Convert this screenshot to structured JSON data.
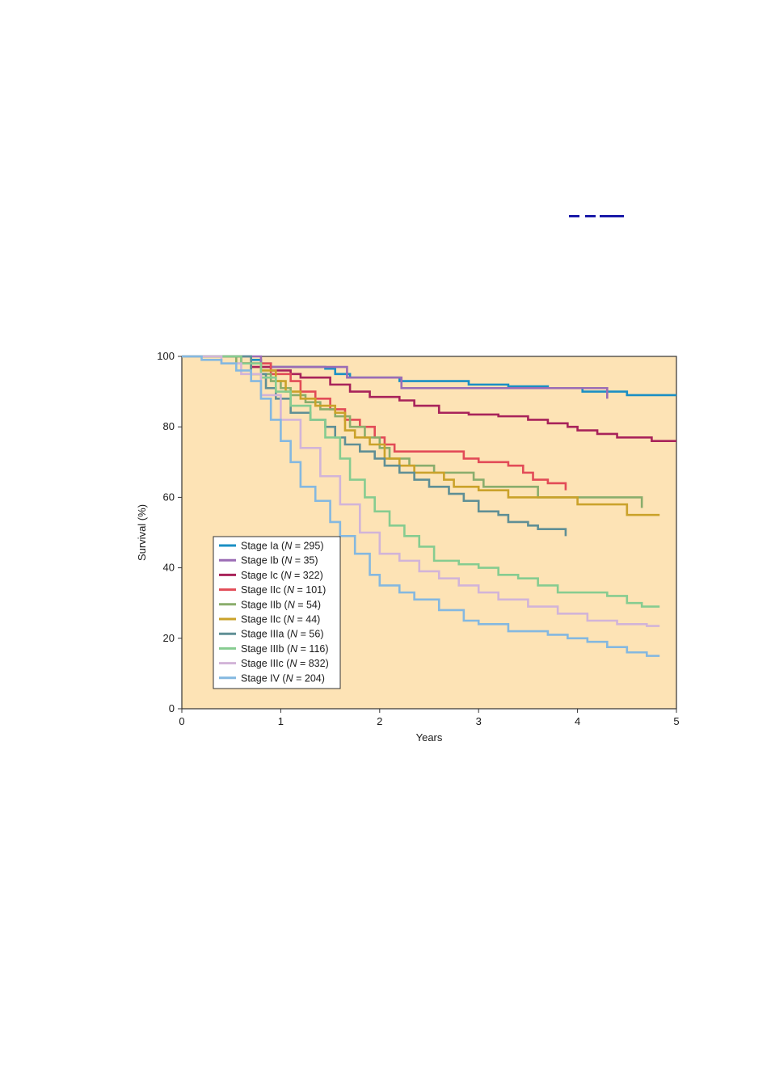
{
  "chart_data": {
    "type": "line",
    "title": "",
    "xlabel": "Years",
    "ylabel": "Survival (%)",
    "xlim": [
      0,
      5
    ],
    "ylim": [
      0,
      100
    ],
    "xticks": [
      "0",
      "1",
      "2",
      "3",
      "4",
      "5"
    ],
    "yticks": [
      "0",
      "20",
      "40",
      "60",
      "80",
      "100"
    ],
    "background_color": "#fde3b5",
    "grid": false,
    "legend_position": "lower-left",
    "series": [
      {
        "name": "Stage Ia",
        "n": "295",
        "color": "#1a8fc4",
        "points": [
          [
            0,
            100
          ],
          [
            0.6,
            100
          ],
          [
            0.7,
            99
          ],
          [
            0.8,
            98
          ],
          [
            0.9,
            97
          ],
          [
            1.45,
            96.5
          ],
          [
            1.55,
            95
          ],
          [
            1.7,
            94
          ],
          [
            2.2,
            93
          ],
          [
            2.85,
            93
          ],
          [
            2.9,
            92
          ],
          [
            3.2,
            92
          ],
          [
            3.3,
            91.5
          ],
          [
            3.7,
            91
          ],
          [
            4.05,
            90
          ],
          [
            4.5,
            90
          ],
          [
            4.5,
            89
          ],
          [
            5,
            89
          ]
        ]
      },
      {
        "name": "Stage Ib",
        "n": "35",
        "color": "#9b6cb5",
        "points": [
          [
            0,
            100
          ],
          [
            0.8,
            100
          ],
          [
            0.8,
            97
          ],
          [
            1.67,
            97
          ],
          [
            1.67,
            94
          ],
          [
            2.22,
            94
          ],
          [
            2.22,
            91
          ],
          [
            4.3,
            91
          ],
          [
            4.3,
            88
          ]
        ]
      },
      {
        "name": "Stage Ic",
        "n": "322",
        "color": "#a8235a",
        "points": [
          [
            0,
            100
          ],
          [
            0.6,
            100
          ],
          [
            0.6,
            98
          ],
          [
            0.7,
            97
          ],
          [
            0.9,
            96
          ],
          [
            1.1,
            95
          ],
          [
            1.2,
            94
          ],
          [
            1.5,
            92
          ],
          [
            1.7,
            90
          ],
          [
            1.9,
            88.5
          ],
          [
            2.2,
            87.5
          ],
          [
            2.35,
            86
          ],
          [
            2.6,
            84
          ],
          [
            2.9,
            83.5
          ],
          [
            3.2,
            83
          ],
          [
            3.5,
            82
          ],
          [
            3.7,
            81
          ],
          [
            3.9,
            80
          ],
          [
            4.0,
            79
          ],
          [
            4.2,
            78
          ],
          [
            4.4,
            77
          ],
          [
            4.75,
            76
          ],
          [
            5,
            76
          ]
        ]
      },
      {
        "name": "Stage IIc",
        "n": "101",
        "color": "#e24b57",
        "points": [
          [
            0,
            100
          ],
          [
            0.6,
            100
          ],
          [
            0.6,
            98
          ],
          [
            0.9,
            97
          ],
          [
            0.9,
            95
          ],
          [
            1.1,
            93
          ],
          [
            1.2,
            90
          ],
          [
            1.35,
            88
          ],
          [
            1.5,
            85
          ],
          [
            1.65,
            82
          ],
          [
            1.8,
            80
          ],
          [
            1.95,
            77
          ],
          [
            2.05,
            75
          ],
          [
            2.15,
            73
          ],
          [
            2.8,
            73
          ],
          [
            2.85,
            71
          ],
          [
            3.0,
            70
          ],
          [
            3.3,
            69
          ],
          [
            3.45,
            67
          ],
          [
            3.55,
            65
          ],
          [
            3.7,
            64
          ],
          [
            3.88,
            64
          ],
          [
            3.88,
            62
          ]
        ]
      },
      {
        "name": "Stage IIb",
        "n": "54",
        "color": "#8aad6c",
        "points": [
          [
            0,
            100
          ],
          [
            0.55,
            100
          ],
          [
            0.55,
            98
          ],
          [
            0.7,
            95
          ],
          [
            0.9,
            93
          ],
          [
            1.0,
            91
          ],
          [
            1.1,
            89
          ],
          [
            1.25,
            87
          ],
          [
            1.4,
            85
          ],
          [
            1.55,
            83
          ],
          [
            1.7,
            80
          ],
          [
            1.85,
            77
          ],
          [
            2.0,
            74
          ],
          [
            2.1,
            71
          ],
          [
            2.3,
            69
          ],
          [
            2.55,
            67
          ],
          [
            2.95,
            65
          ],
          [
            3.05,
            63
          ],
          [
            3.6,
            62
          ],
          [
            3.6,
            60
          ],
          [
            4.65,
            60
          ],
          [
            4.65,
            57
          ]
        ]
      },
      {
        "name": "Stage IIc",
        "n": "44",
        "color": "#caa22a",
        "points": [
          [
            0,
            100
          ],
          [
            0.6,
            100
          ],
          [
            0.6,
            98
          ],
          [
            0.8,
            96
          ],
          [
            0.95,
            93
          ],
          [
            1.05,
            90
          ],
          [
            1.2,
            88
          ],
          [
            1.35,
            86
          ],
          [
            1.55,
            84
          ],
          [
            1.65,
            79
          ],
          [
            1.75,
            77
          ],
          [
            1.9,
            75
          ],
          [
            2.05,
            71
          ],
          [
            2.2,
            69
          ],
          [
            2.35,
            67
          ],
          [
            2.65,
            65
          ],
          [
            2.75,
            63
          ],
          [
            3.0,
            62
          ],
          [
            3.3,
            60
          ],
          [
            4.0,
            58
          ],
          [
            4.5,
            55
          ],
          [
            4.83,
            55
          ]
        ]
      },
      {
        "name": "Stage IIIa",
        "n": "56",
        "color": "#5f8f95",
        "points": [
          [
            0,
            100
          ],
          [
            0.7,
            100
          ],
          [
            0.7,
            95
          ],
          [
            0.85,
            91
          ],
          [
            0.95,
            88
          ],
          [
            1.1,
            84
          ],
          [
            1.3,
            82
          ],
          [
            1.45,
            80
          ],
          [
            1.55,
            77
          ],
          [
            1.65,
            75
          ],
          [
            1.8,
            73
          ],
          [
            1.95,
            71
          ],
          [
            2.05,
            69
          ],
          [
            2.2,
            67
          ],
          [
            2.35,
            65
          ],
          [
            2.5,
            63
          ],
          [
            2.7,
            61
          ],
          [
            2.85,
            59
          ],
          [
            3.0,
            56
          ],
          [
            3.2,
            55
          ],
          [
            3.3,
            53
          ],
          [
            3.5,
            52
          ],
          [
            3.6,
            51
          ],
          [
            3.88,
            51
          ],
          [
            3.88,
            49
          ]
        ]
      },
      {
        "name": "Stage IIIb",
        "n": "116",
        "color": "#86cc90",
        "points": [
          [
            0,
            100
          ],
          [
            0.55,
            100
          ],
          [
            0.6,
            98
          ],
          [
            0.8,
            94
          ],
          [
            0.95,
            90
          ],
          [
            1.1,
            86
          ],
          [
            1.3,
            82
          ],
          [
            1.45,
            77
          ],
          [
            1.6,
            71
          ],
          [
            1.7,
            65
          ],
          [
            1.85,
            60
          ],
          [
            1.95,
            56
          ],
          [
            2.1,
            52
          ],
          [
            2.25,
            49
          ],
          [
            2.4,
            46
          ],
          [
            2.55,
            42
          ],
          [
            2.8,
            41
          ],
          [
            3.0,
            40
          ],
          [
            3.2,
            38
          ],
          [
            3.4,
            37
          ],
          [
            3.6,
            35
          ],
          [
            3.8,
            33
          ],
          [
            4.3,
            32
          ],
          [
            4.5,
            30
          ],
          [
            4.65,
            29
          ],
          [
            4.83,
            29
          ]
        ]
      },
      {
        "name": "Stage IIIc",
        "n": "832",
        "color": "#d2b4d8",
        "points": [
          [
            0,
            100
          ],
          [
            0.25,
            100
          ],
          [
            0.4,
            98
          ],
          [
            0.6,
            95
          ],
          [
            0.8,
            89
          ],
          [
            1.0,
            82
          ],
          [
            1.2,
            74
          ],
          [
            1.4,
            66
          ],
          [
            1.6,
            58
          ],
          [
            1.8,
            50
          ],
          [
            2.0,
            44
          ],
          [
            2.2,
            42
          ],
          [
            2.4,
            39
          ],
          [
            2.6,
            37
          ],
          [
            2.8,
            35
          ],
          [
            3.0,
            33
          ],
          [
            3.2,
            31
          ],
          [
            3.5,
            29
          ],
          [
            3.8,
            27
          ],
          [
            4.1,
            25
          ],
          [
            4.4,
            24
          ],
          [
            4.7,
            23.5
          ],
          [
            4.83,
            23.5
          ]
        ]
      },
      {
        "name": "Stage IV",
        "n": "204",
        "color": "#84b8e0",
        "points": [
          [
            0,
            100
          ],
          [
            0.2,
            99
          ],
          [
            0.4,
            98
          ],
          [
            0.55,
            96
          ],
          [
            0.7,
            93
          ],
          [
            0.8,
            88
          ],
          [
            0.9,
            82
          ],
          [
            1.0,
            76
          ],
          [
            1.1,
            70
          ],
          [
            1.2,
            63
          ],
          [
            1.35,
            59
          ],
          [
            1.5,
            53
          ],
          [
            1.6,
            49
          ],
          [
            1.75,
            44
          ],
          [
            1.9,
            38
          ],
          [
            2.0,
            35
          ],
          [
            2.2,
            33
          ],
          [
            2.35,
            31
          ],
          [
            2.6,
            28
          ],
          [
            2.85,
            25
          ],
          [
            3.0,
            24
          ],
          [
            3.3,
            22
          ],
          [
            3.7,
            21
          ],
          [
            3.9,
            20
          ],
          [
            4.1,
            19
          ],
          [
            4.3,
            17.5
          ],
          [
            4.5,
            16
          ],
          [
            4.7,
            15
          ],
          [
            4.83,
            15
          ]
        ]
      }
    ]
  }
}
